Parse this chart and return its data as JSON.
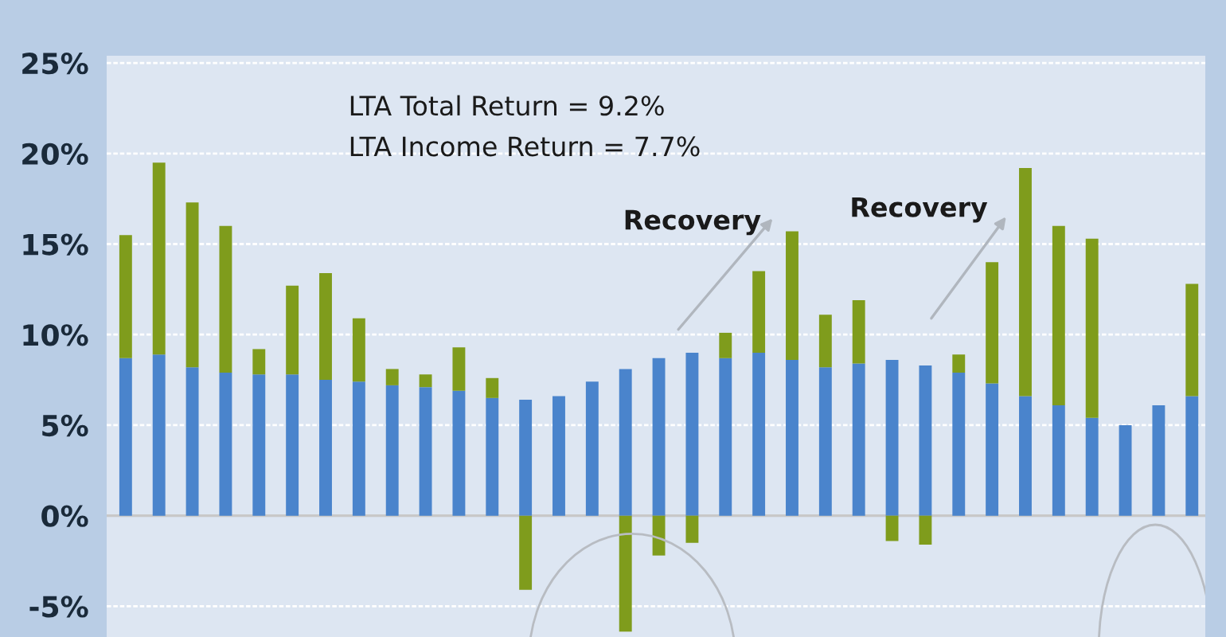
{
  "chart_data": {
    "type": "bar",
    "stacked": true,
    "categories": [
      null,
      null,
      null,
      null,
      null,
      null,
      null,
      null,
      null,
      null,
      null,
      null,
      null,
      null,
      null,
      null,
      null,
      null,
      null,
      null,
      null,
      null,
      null,
      null,
      null,
      null,
      null,
      null,
      null,
      null,
      null,
      null,
      null
    ],
    "series": [
      {
        "color": "#4a84cc",
        "values": [
          8.7,
          8.9,
          8.2,
          7.9,
          7.8,
          7.8,
          7.5,
          7.4,
          7.2,
          7.1,
          6.9,
          6.5,
          6.4,
          6.6,
          7.4,
          8.1,
          8.7,
          9.0,
          8.7,
          9.0,
          8.6,
          8.2,
          8.4,
          8.6,
          8.3,
          7.9,
          7.3,
          6.6,
          6.1,
          5.4,
          5.0,
          6.1,
          6.6
        ]
      },
      {
        "color": "#7f9c1c",
        "values": [
          6.8,
          10.6,
          9.1,
          8.1,
          1.4,
          4.9,
          5.9,
          3.5,
          0.9,
          0.7,
          2.4,
          1.1,
          -4.1,
          null,
          null,
          -6.4,
          -2.2,
          -1.5,
          1.4,
          4.5,
          7.1,
          2.9,
          3.5,
          -1.4,
          -1.6,
          1.0,
          6.7,
          12.6,
          9.9,
          9.9,
          null,
          null,
          6.2
        ]
      }
    ],
    "ylim": [
      -6.7,
      25.4
    ],
    "yticks": [
      {
        "value": -5,
        "label": "-5%"
      },
      {
        "value": 0,
        "label": "0%"
      },
      {
        "value": 5,
        "label": "5%"
      },
      {
        "value": 10,
        "label": "10%"
      },
      {
        "value": 15,
        "label": "15%"
      },
      {
        "value": 20,
        "label": "20%"
      },
      {
        "value": 25,
        "label": "25%"
      }
    ],
    "grid": "y",
    "tick_labels": "y",
    "annotations": [
      "LTA Total Return = 9.2%",
      "LTA Income Return = 7.7%",
      "Recovery",
      "Recovery"
    ]
  }
}
